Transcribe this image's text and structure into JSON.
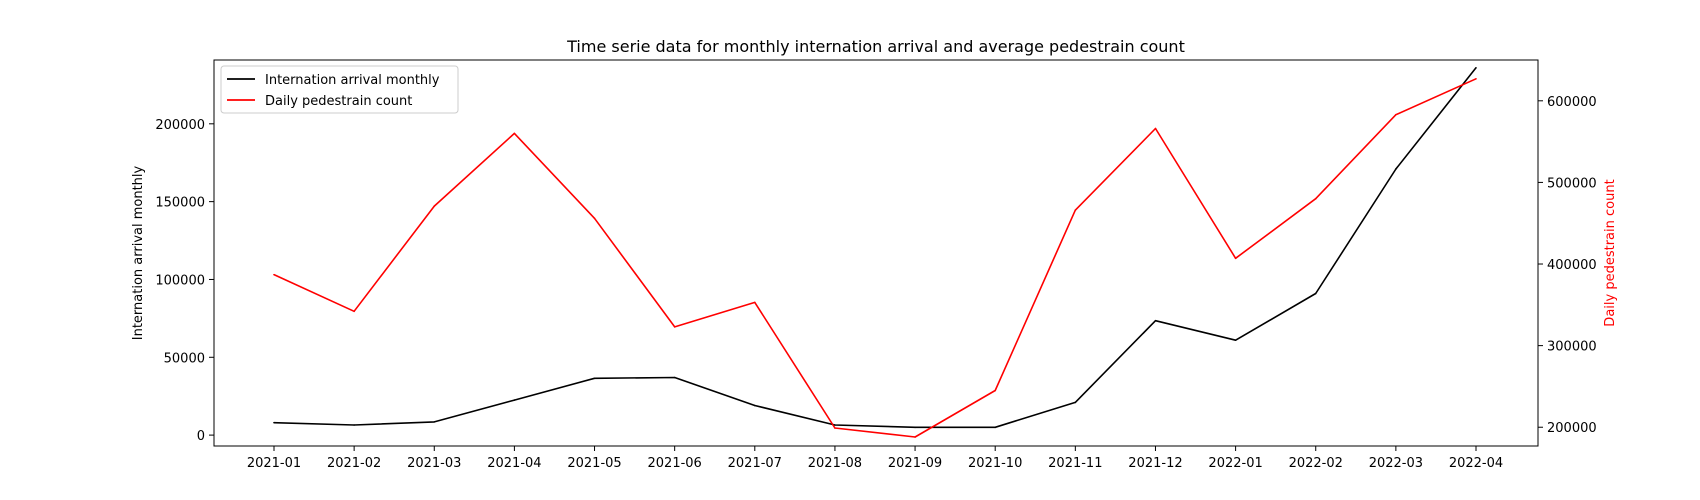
{
  "chart_data": {
    "type": "line",
    "title": "Time serie data for monthly internation arrival and average pedestrain count",
    "xlabel": "",
    "categories": [
      "2021-01",
      "2021-02",
      "2021-03",
      "2021-04",
      "2021-05",
      "2021-06",
      "2021-07",
      "2021-08",
      "2021-09",
      "2021-10",
      "2021-11",
      "2021-12",
      "2022-01",
      "2022-02",
      "2022-03",
      "2022-04"
    ],
    "y_left": {
      "label": "Internation arrival monthly",
      "color": "#000000",
      "ylim": [
        -7000,
        241000
      ],
      "ticks": [
        0,
        50000,
        100000,
        150000,
        200000
      ],
      "tick_labels": [
        "0",
        "50000",
        "100000",
        "150000",
        "200000"
      ]
    },
    "y_right": {
      "label": "Daily pedestrain count",
      "color": "#ff0000",
      "ylim": [
        177000,
        650000
      ],
      "ticks": [
        200000,
        300000,
        400000,
        500000,
        600000
      ],
      "tick_labels": [
        "200000",
        "300000",
        "400000",
        "500000",
        "600000"
      ]
    },
    "series": [
      {
        "name": "Internation arrival monthly",
        "axis": "left",
        "color": "#000000",
        "values": [
          8000,
          6500,
          8500,
          22500,
          36500,
          37000,
          19000,
          6500,
          5000,
          5000,
          21000,
          73500,
          61000,
          91000,
          171000,
          236000
        ]
      },
      {
        "name": "Daily pedestrain count",
        "axis": "right",
        "color": "#ff0000",
        "values": [
          387000,
          342000,
          471000,
          560000,
          456000,
          323000,
          353000,
          199000,
          188000,
          245000,
          466000,
          566000,
          407000,
          480000,
          583000,
          627000
        ]
      }
    ],
    "legend_position": "top-left",
    "grid": false
  }
}
